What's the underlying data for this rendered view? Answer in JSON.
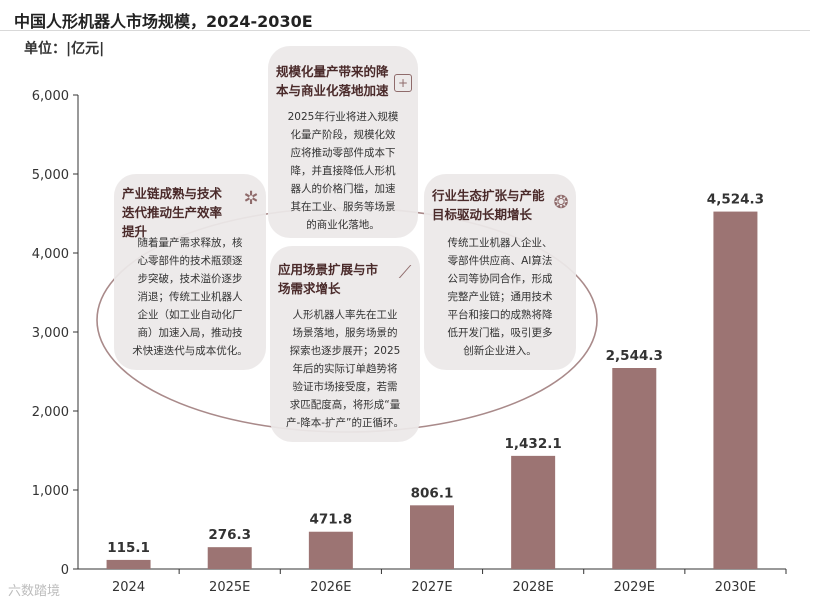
{
  "header": {
    "title": "中国人形机器人市场规模，2024-2030E",
    "unit": "单位：|亿元|"
  },
  "chart_data": {
    "type": "bar",
    "title": "中国人形机器人市场规模，2024-2030E",
    "ylabel": "亿元",
    "xlabel": "",
    "ylim": [
      0,
      6000
    ],
    "yticks": [
      0,
      1000,
      2000,
      3000,
      4000,
      5000,
      6000
    ],
    "ytick_labels": [
      "0",
      "1,000",
      "2,000",
      "3,000",
      "4,000",
      "5,000",
      "6,000"
    ],
    "categories": [
      "2024",
      "2025E",
      "2026E",
      "2027E",
      "2028E",
      "2029E",
      "2030E"
    ],
    "values": [
      115.1,
      276.3,
      471.8,
      806.1,
      1432.1,
      2544.3,
      4524.3
    ],
    "value_labels": [
      "115.1",
      "276.3",
      "471.8",
      "806.1",
      "1,432.1",
      "2,544.3",
      "4,524.3"
    ],
    "bar_color": "#9c7473"
  },
  "cards": [
    {
      "title": "产业链成熟与技术迭代推动生产效率提升",
      "icon": "gear-icon",
      "lines": [
        "随着量产需求释放，核",
        "心零部件的技术瓶颈逐",
        "步突破，技术溢价逐步",
        "消退；传统工业机器人",
        "企业（如工业自动化厂",
        "商）加速入局，推动技",
        "术快速迭代与成本优化。"
      ]
    },
    {
      "title": "规模化量产带来的降本与商业化落地加速",
      "icon": "scale-box-icon",
      "lines": [
        "2025年行业将进入规模",
        "化量产阶段，规模化效",
        "应将推动零部件成本下",
        "降，并直接降低人形机",
        "器人的价格门槛，加速",
        "其在工业、服务等场景",
        "的商业化落地。"
      ]
    },
    {
      "title": "应用场景扩展与市场需求增长",
      "icon": "robot-arm-icon",
      "lines": [
        "人形机器人率先在工业",
        "场景落地，服务场景的",
        "探索也逐步展开；2025",
        "年后的实际订单趋势将",
        "验证市场接受度，若需",
        "求匹配度高，将形成“量",
        "产-降本-扩产”的正循环。"
      ]
    },
    {
      "title": "行业生态扩张与产能目标驱动长期增长",
      "icon": "ecosystem-icon",
      "lines": [
        "传统工业机器人企业、",
        "零部件供应商、AI算法",
        "公司等协同合作，形成",
        "完整产业链；通用技术",
        "平台和接口的成熟将降",
        "低开发门槛，吸引更多",
        "创新企业进入。"
      ]
    }
  ],
  "watermark": "六数踏境"
}
